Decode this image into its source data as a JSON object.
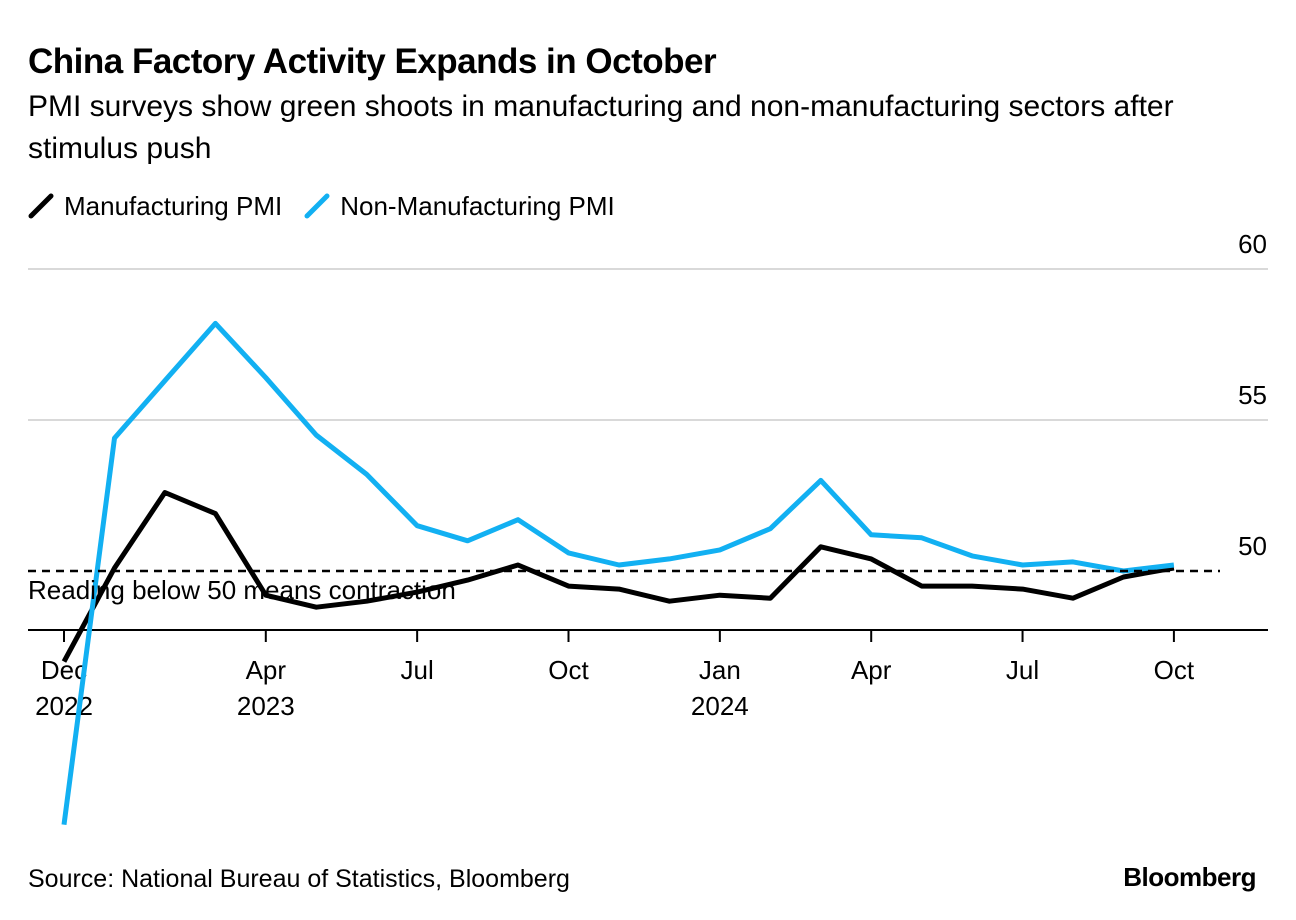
{
  "chart_data": {
    "type": "line",
    "title": "China Factory Activity Expands in October",
    "subtitle": "PMI surveys show green shoots in manufacturing and non-manufacturing sectors after stimulus push",
    "x": [
      "2022-12",
      "2023-01",
      "2023-02",
      "2023-03",
      "2023-04",
      "2023-05",
      "2023-06",
      "2023-07",
      "2023-08",
      "2023-09",
      "2023-10",
      "2023-11",
      "2023-12",
      "2024-01",
      "2024-02",
      "2024-03",
      "2024-04",
      "2024-05",
      "2024-06",
      "2024-07",
      "2024-08",
      "2024-09",
      "2024-10"
    ],
    "series": [
      {
        "name": "Manufacturing PMI",
        "color": "#000000",
        "values": [
          47.0,
          50.1,
          52.6,
          51.9,
          49.2,
          48.8,
          49.0,
          49.3,
          49.7,
          50.2,
          49.5,
          49.4,
          49.0,
          49.2,
          49.1,
          50.8,
          50.4,
          49.5,
          49.5,
          49.4,
          49.1,
          49.8,
          50.1
        ]
      },
      {
        "name": "Non-Manufacturing PMI",
        "color": "#12b0f2",
        "values": [
          41.6,
          54.4,
          56.3,
          58.2,
          56.4,
          54.5,
          53.2,
          51.5,
          51.0,
          51.7,
          50.6,
          50.2,
          50.4,
          50.7,
          51.4,
          53.0,
          51.2,
          51.1,
          50.5,
          50.2,
          50.3,
          50.0,
          50.2
        ]
      }
    ],
    "y_ticks": [
      50,
      55,
      60
    ],
    "ylim": [
      48,
      60
    ],
    "x_ticks": [
      {
        "index": 0,
        "label": "Dec",
        "year": "2022"
      },
      {
        "index": 4,
        "label": "Apr",
        "year": "2023"
      },
      {
        "index": 7,
        "label": "Jul",
        "year": ""
      },
      {
        "index": 10,
        "label": "Oct",
        "year": ""
      },
      {
        "index": 13,
        "label": "Jan",
        "year": "2024"
      },
      {
        "index": 16,
        "label": "Apr",
        "year": ""
      },
      {
        "index": 19,
        "label": "Jul",
        "year": ""
      },
      {
        "index": 22,
        "label": "Oct",
        "year": ""
      }
    ],
    "reference_line": {
      "value": 50,
      "label": "Reading below 50 means contraction"
    },
    "legend_position": "top-left"
  },
  "source": "Source: National Bureau of Statistics, Bloomberg",
  "brand": "Bloomberg"
}
